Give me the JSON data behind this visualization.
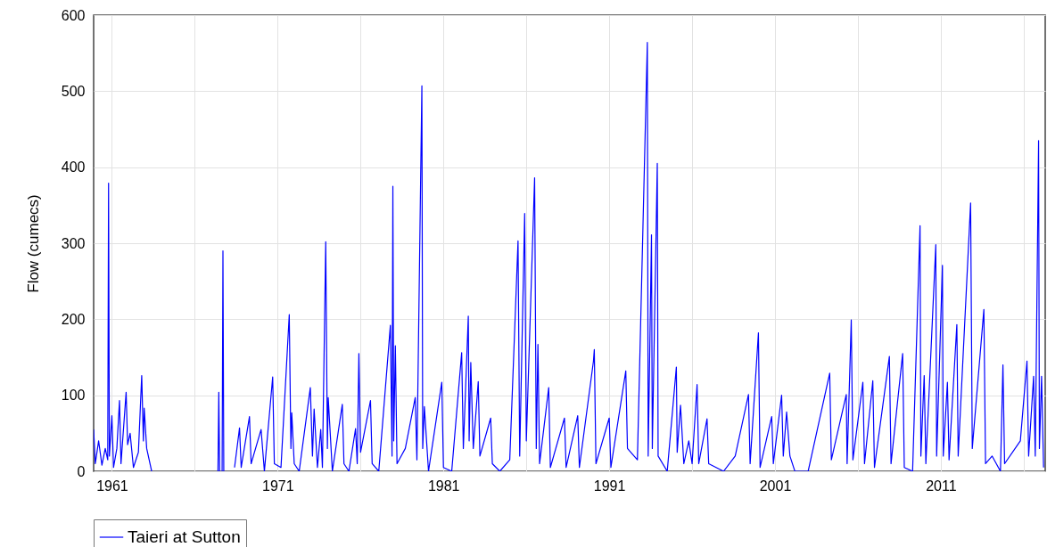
{
  "chart_data": {
    "type": "line",
    "ylabel": "Flow (cumecs)",
    "legend": "bottom",
    "grid": true,
    "xlim": [
      1959.9,
      2017.3
    ],
    "xticks": [
      {
        "value": 1961,
        "label": "1961"
      },
      {
        "value": 1966,
        "label": null
      },
      {
        "value": 1971,
        "label": "1971"
      },
      {
        "value": 1976,
        "label": null
      },
      {
        "value": 1981,
        "label": "1981"
      },
      {
        "value": 1986,
        "label": null
      },
      {
        "value": 1991,
        "label": "1991"
      },
      {
        "value": 1996,
        "label": null
      },
      {
        "value": 2001,
        "label": "2001"
      },
      {
        "value": 2006,
        "label": null
      },
      {
        "value": 2011,
        "label": "2011"
      },
      {
        "value": 2016,
        "label": null
      }
    ],
    "ylim": [
      0,
      600
    ],
    "yticks": [
      0,
      100,
      200,
      300,
      400,
      500,
      600
    ],
    "series": [
      {
        "name": "Taieri at Sutton",
        "color": "#0000ff",
        "x": [
          1959.9,
          1960.0,
          1960.2,
          1960.4,
          1960.6,
          1960.75,
          1960.8,
          1960.85,
          1961.0,
          1961.1,
          1961.3,
          1961.46,
          1961.55,
          1961.86,
          1961.95,
          1962.1,
          1962.3,
          1962.6,
          1962.8,
          1962.9,
          1962.95,
          1963.1,
          1963.4,
          1963.5,
          1967.4,
          1967.45,
          1967.5,
          1967.6,
          1967.65,
          1967.7,
          1967.75,
          1967.8,
          1968.4,
          1968.7,
          1968.8,
          1969.3,
          1969.4,
          1970.0,
          1970.2,
          1970.7,
          1970.8,
          1971.2,
          1971.7,
          1971.8,
          1971.85,
          1972.0,
          1972.3,
          1972.97,
          1973.1,
          1973.2,
          1973.4,
          1973.6,
          1973.7,
          1973.9,
          1974.0,
          1974.05,
          1974.3,
          1974.9,
          1975.0,
          1975.3,
          1975.7,
          1975.8,
          1975.9,
          1976.0,
          1976.6,
          1976.7,
          1977.1,
          1977.8,
          1977.9,
          1977.95,
          1978.0,
          1978.1,
          1978.2,
          1978.7,
          1979.3,
          1979.4,
          1979.7,
          1979.75,
          1979.85,
          1980.1,
          1980.9,
          1981.0,
          1981.5,
          1982.1,
          1982.2,
          1982.5,
          1982.55,
          1982.65,
          1982.8,
          1983.1,
          1983.2,
          1983.85,
          1983.95,
          1984.4,
          1985.0,
          1985.5,
          1985.6,
          1985.9,
          1986.0,
          1986.5,
          1986.6,
          1986.7,
          1986.8,
          1987.35,
          1987.45,
          1988.3,
          1988.4,
          1989.1,
          1989.2,
          1990.05,
          1990.1,
          1990.2,
          1991.0,
          1991.1,
          1992.0,
          1992.1,
          1992.7,
          1993.3,
          1993.35,
          1993.55,
          1993.6,
          1993.9,
          1993.95,
          1994.5,
          1995.05,
          1995.1,
          1995.3,
          1995.5,
          1995.8,
          1996.0,
          1996.3,
          1996.4,
          1996.9,
          1997.0,
          1997.9,
          1998.6,
          1999.4,
          1999.5,
          2000.0,
          2000.1,
          2000.8,
          2000.9,
          2001.4,
          2001.5,
          2001.7,
          2001.9,
          2002.2,
          2003.0,
          2004.3,
          2004.4,
          2005.3,
          2005.35,
          2005.6,
          2005.7,
          2006.3,
          2006.4,
          2006.9,
          2007.0,
          2007.9,
          2008.0,
          2008.7,
          2008.8,
          2009.3,
          2009.75,
          2009.8,
          2010.0,
          2010.1,
          2010.7,
          2010.75,
          2011.1,
          2011.15,
          2011.4,
          2011.5,
          2011.97,
          2012.05,
          2012.8,
          2012.9,
          2013.6,
          2013.7,
          2014.1,
          2014.6,
          2014.75,
          2014.85,
          2015.8,
          2016.2,
          2016.3,
          2016.6,
          2016.7,
          2016.9,
          2016.95,
          2017.08,
          2017.2
        ],
        "values": [
          55,
          10,
          40,
          8,
          30,
          15,
          379,
          20,
          73,
          5,
          30,
          93,
          10,
          104,
          35,
          50,
          5,
          25,
          126,
          40,
          83,
          30,
          0,
          null,
          0,
          104,
          0,
          null,
          0,
          290,
          0,
          null,
          5,
          57,
          5,
          72,
          10,
          55,
          0,
          124,
          10,
          5,
          206,
          30,
          77,
          10,
          0,
          110,
          20,
          82,
          5,
          55,
          5,
          302,
          30,
          97,
          0,
          88,
          10,
          0,
          56,
          10,
          155,
          25,
          93,
          10,
          0,
          192,
          20,
          375,
          40,
          165,
          10,
          30,
          97,
          15,
          507,
          30,
          85,
          0,
          117,
          5,
          0,
          156,
          30,
          204,
          40,
          143,
          30,
          118,
          20,
          70,
          10,
          0,
          15,
          303,
          20,
          339,
          40,
          386,
          30,
          167,
          10,
          110,
          5,
          70,
          5,
          73,
          5,
          145,
          160,
          10,
          70,
          5,
          132,
          30,
          15,
          564,
          20,
          311,
          30,
          405,
          20,
          0,
          137,
          25,
          87,
          10,
          40,
          10,
          114,
          10,
          69,
          10,
          0,
          20,
          101,
          10,
          182,
          5,
          72,
          10,
          100,
          20,
          78,
          20,
          0,
          0,
          129,
          15,
          101,
          10,
          199,
          15,
          117,
          10,
          119,
          5,
          151,
          10,
          155,
          5,
          0,
          323,
          20,
          126,
          10,
          298,
          20,
          271,
          20,
          117,
          15,
          193,
          20,
          353,
          30,
          213,
          10,
          20,
          0,
          140,
          10,
          40,
          145,
          20,
          125,
          20,
          435,
          30,
          125,
          5
        ]
      }
    ]
  }
}
